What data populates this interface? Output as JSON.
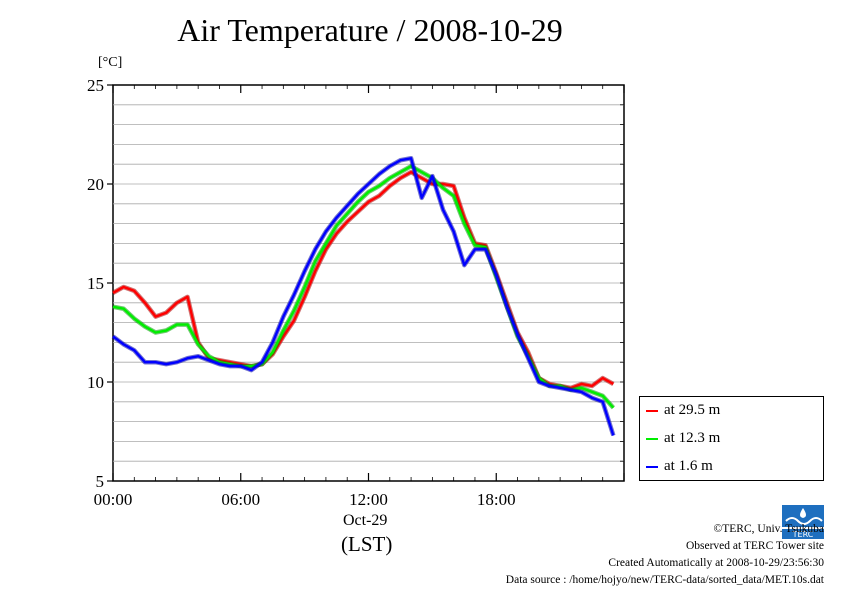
{
  "title": "Air Temperature / 2008-10-29",
  "unit_label": "[°C]",
  "x_date_label": "Oct-29",
  "x_zone_label": "(LST)",
  "legend": [
    {
      "label": "at 29.5 m",
      "color": "#ff0000"
    },
    {
      "label": "at 12.3 m",
      "color": "#00ee00"
    },
    {
      "label": "at 1.6 m",
      "color": "#0000ff"
    }
  ],
  "footer": {
    "copyright": "©TERC, Univ. Tsukuba",
    "observed": "Observed at TERC Tower site",
    "created": "Created Automatically at 2008-10-29/23:56:30",
    "source": "Data source : /home/hojyo/new/TERC-data/sorted_data/MET.10s.dat"
  },
  "logo_text": "TERC",
  "chart_data": {
    "type": "line",
    "title": "Air Temperature / 2008-10-29",
    "ylabel": "[°C]",
    "xlabel": "Oct-29 (LST)",
    "xlim": [
      0,
      24
    ],
    "ylim": [
      5,
      25
    ],
    "x_ticks": [
      0,
      6,
      12,
      18
    ],
    "x_tick_labels": [
      "00:00",
      "06:00",
      "12:00",
      "18:00"
    ],
    "y_ticks": [
      5,
      10,
      15,
      20,
      25
    ],
    "y_tick_labels": [
      "5",
      "10",
      "15",
      "20",
      "25"
    ],
    "grid": true,
    "legend_position": "right",
    "x": [
      0,
      0.5,
      1,
      1.5,
      2,
      2.5,
      3,
      3.5,
      4,
      4.5,
      5,
      5.5,
      6,
      6.5,
      7,
      7.5,
      8,
      8.5,
      9,
      9.5,
      10,
      10.5,
      11,
      11.5,
      12,
      12.5,
      13,
      13.5,
      14,
      14.5,
      15,
      15.5,
      16,
      16.5,
      17,
      17.5,
      18,
      18.5,
      19,
      19.5,
      20,
      20.5,
      21,
      21.5,
      22,
      22.5,
      23,
      23.5
    ],
    "series": [
      {
        "name": "at 29.5 m",
        "color": "#ff0000",
        "values": [
          14.5,
          14.8,
          14.6,
          14.0,
          13.3,
          13.5,
          14.0,
          14.3,
          12.0,
          11.2,
          11.1,
          11.0,
          10.9,
          10.8,
          10.9,
          11.4,
          12.3,
          13.1,
          14.3,
          15.6,
          16.7,
          17.5,
          18.1,
          18.6,
          19.1,
          19.4,
          19.9,
          20.3,
          20.6,
          20.3,
          20.0,
          20.0,
          19.9,
          18.3,
          17.0,
          16.9,
          15.5,
          14.0,
          12.5,
          11.5,
          10.2,
          9.9,
          9.8,
          9.7,
          9.9,
          9.8,
          10.2,
          9.9
        ]
      },
      {
        "name": "at 12.3 m",
        "color": "#00ee00",
        "values": [
          13.8,
          13.7,
          13.2,
          12.8,
          12.5,
          12.6,
          12.9,
          12.9,
          11.9,
          11.3,
          11.0,
          10.9,
          10.8,
          10.8,
          10.9,
          11.5,
          12.6,
          13.6,
          14.8,
          16.1,
          17.0,
          17.9,
          18.5,
          19.1,
          19.6,
          19.9,
          20.3,
          20.6,
          20.9,
          20.6,
          20.3,
          19.8,
          19.4,
          18.0,
          16.9,
          16.8,
          15.3,
          13.8,
          12.3,
          11.3,
          10.2,
          9.8,
          9.8,
          9.6,
          9.7,
          9.5,
          9.3,
          8.7
        ]
      },
      {
        "name": "at 1.6 m",
        "color": "#0000ff",
        "values": [
          12.3,
          11.9,
          11.6,
          11.0,
          11.0,
          10.9,
          11.0,
          11.2,
          11.3,
          11.1,
          10.9,
          10.8,
          10.8,
          10.6,
          11.0,
          12.0,
          13.3,
          14.4,
          15.6,
          16.7,
          17.6,
          18.3,
          18.9,
          19.5,
          20.0,
          20.5,
          20.9,
          21.2,
          21.3,
          19.3,
          20.4,
          18.7,
          17.6,
          15.9,
          16.7,
          16.7,
          15.4,
          13.8,
          12.4,
          11.2,
          10.0,
          9.8,
          9.7,
          9.6,
          9.5,
          9.2,
          9.0,
          7.3
        ]
      }
    ]
  }
}
